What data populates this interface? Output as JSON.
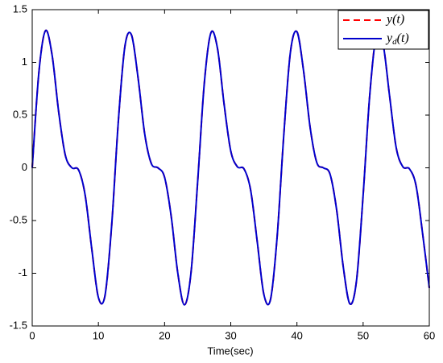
{
  "chart_data": {
    "type": "line",
    "xlabel": "Time(sec)",
    "x": [
      0,
      1,
      2,
      3,
      4,
      5,
      6,
      7,
      8,
      9,
      10,
      11,
      12,
      13,
      14,
      15,
      16,
      17,
      18,
      19,
      20,
      21,
      22,
      23,
      24,
      25,
      26,
      27,
      28,
      29,
      30,
      31,
      32,
      33,
      34,
      35,
      36,
      37,
      38,
      39,
      40,
      41,
      42,
      43,
      44,
      45,
      46,
      47,
      48,
      49,
      50,
      51,
      52,
      53,
      54,
      55,
      56,
      57,
      58,
      59,
      60
    ],
    "series": [
      {
        "name": "y(t)",
        "color": "#ff0000",
        "dashed": true,
        "values": [
          0,
          0.9,
          1.3,
          1.07,
          0.53,
          0.12,
          0.0,
          -0.02,
          -0.26,
          -0.77,
          -1.23,
          -1.21,
          -0.55,
          0.43,
          1.15,
          1.26,
          0.85,
          0.32,
          0.04,
          0.0,
          -0.09,
          -0.46,
          -1.0,
          -1.3,
          -0.99,
          -0.13,
          0.8,
          1.28,
          1.13,
          0.6,
          0.16,
          0.01,
          -0.01,
          -0.21,
          -0.7,
          -1.2,
          -1.25,
          -0.66,
          0.3,
          1.09,
          1.29,
          0.92,
          0.38,
          0.05,
          0.0,
          -0.06,
          -0.4,
          -0.94,
          -1.29,
          -1.07,
          -0.26,
          0.69,
          1.26,
          1.18,
          0.68,
          0.19,
          0.01,
          -0.01,
          -0.17,
          -0.63,
          -1.14
        ]
      },
      {
        "name": "yd(t)",
        "color": "#0000cc",
        "dashed": false,
        "values": [
          0,
          0.9,
          1.3,
          1.07,
          0.53,
          0.12,
          0.0,
          -0.02,
          -0.26,
          -0.77,
          -1.23,
          -1.21,
          -0.55,
          0.43,
          1.15,
          1.26,
          0.85,
          0.32,
          0.04,
          0.0,
          -0.09,
          -0.46,
          -1.0,
          -1.3,
          -0.99,
          -0.13,
          0.8,
          1.28,
          1.13,
          0.6,
          0.16,
          0.01,
          -0.01,
          -0.21,
          -0.7,
          -1.2,
          -1.25,
          -0.66,
          0.3,
          1.09,
          1.29,
          0.92,
          0.38,
          0.05,
          0.0,
          -0.06,
          -0.4,
          -0.94,
          -1.29,
          -1.07,
          -0.26,
          0.69,
          1.26,
          1.18,
          0.68,
          0.19,
          0.01,
          -0.01,
          -0.17,
          -0.63,
          -1.14
        ]
      }
    ],
    "xlim": [
      0,
      60
    ],
    "xticks": [
      0,
      10,
      20,
      30,
      40,
      50,
      60
    ],
    "ylim": [
      -1.5,
      1.5
    ],
    "yticks": [
      -1.5,
      -1,
      -0.5,
      0,
      0.5,
      1,
      1.5
    ],
    "grid": false,
    "legend": "upper right"
  }
}
